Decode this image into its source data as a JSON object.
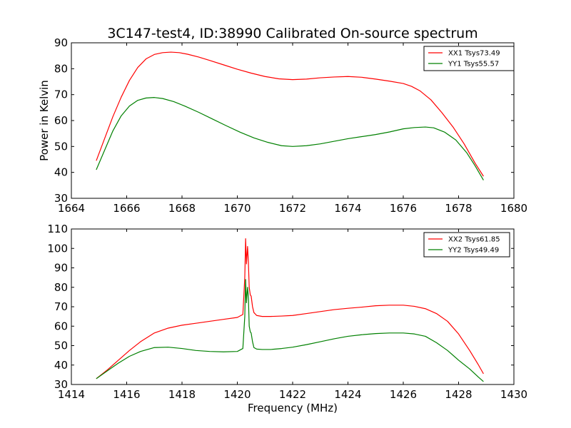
{
  "figure_title": "3C147-test4, ID:38990 Calibrated On-source spectrum",
  "chart_data": [
    {
      "type": "line",
      "title": "3C147-test4, ID:38990 Calibrated On-source spectrum",
      "xlabel": "",
      "ylabel": "Power in Kelvin",
      "xlim": [
        1664,
        1680
      ],
      "ylim": [
        30,
        90
      ],
      "xticks": [
        1664,
        1666,
        1668,
        1670,
        1672,
        1674,
        1676,
        1678,
        1680
      ],
      "yticks": [
        30,
        40,
        50,
        60,
        70,
        80,
        90
      ],
      "grid": false,
      "legend_position": "top-right",
      "series": [
        {
          "name": "XX1 Tsys73.49",
          "color": "#ff0000",
          "x": [
            1664.9,
            1665.2,
            1665.5,
            1665.8,
            1666.1,
            1666.4,
            1666.7,
            1667.0,
            1667.3,
            1667.6,
            1667.9,
            1668.2,
            1668.6,
            1669.0,
            1669.5,
            1670.0,
            1670.5,
            1671.0,
            1671.5,
            1672.0,
            1672.5,
            1673.0,
            1673.5,
            1674.0,
            1674.5,
            1675.0,
            1675.5,
            1676.0,
            1676.3,
            1676.6,
            1677.0,
            1677.4,
            1677.8,
            1678.2,
            1678.6,
            1678.9
          ],
          "y": [
            44.5,
            53.0,
            61.5,
            69.0,
            75.5,
            80.5,
            83.8,
            85.5,
            86.2,
            86.4,
            86.2,
            85.6,
            84.5,
            83.2,
            81.5,
            79.8,
            78.3,
            77.0,
            76.1,
            75.8,
            76.0,
            76.5,
            76.8,
            77.0,
            76.7,
            76.0,
            75.2,
            74.3,
            73.2,
            71.5,
            68.0,
            63.0,
            57.5,
            51.0,
            43.5,
            38.5
          ]
        },
        {
          "name": "YY1 Tsys55.57",
          "color": "#008000",
          "x": [
            1664.9,
            1665.2,
            1665.5,
            1665.8,
            1666.1,
            1666.4,
            1666.7,
            1667.0,
            1667.3,
            1667.7,
            1668.1,
            1668.6,
            1669.1,
            1669.6,
            1670.1,
            1670.6,
            1671.1,
            1671.6,
            1672.0,
            1672.5,
            1673.0,
            1673.5,
            1674.0,
            1674.5,
            1675.0,
            1675.5,
            1676.0,
            1676.4,
            1676.8,
            1677.1,
            1677.5,
            1677.9,
            1678.3,
            1678.6,
            1678.9
          ],
          "y": [
            41.0,
            48.5,
            56.0,
            61.8,
            65.6,
            67.8,
            68.7,
            68.9,
            68.5,
            67.3,
            65.6,
            63.2,
            60.6,
            58.0,
            55.5,
            53.3,
            51.6,
            50.3,
            50.0,
            50.3,
            51.0,
            52.0,
            53.0,
            53.8,
            54.6,
            55.6,
            56.8,
            57.3,
            57.5,
            57.2,
            55.5,
            52.5,
            47.5,
            42.5,
            37.0
          ]
        }
      ]
    },
    {
      "type": "line",
      "title": "",
      "xlabel": "Frequency (MHz)",
      "ylabel": "",
      "xlim": [
        1414,
        1430
      ],
      "ylim": [
        30,
        110
      ],
      "xticks": [
        1414,
        1416,
        1418,
        1420,
        1422,
        1424,
        1426,
        1428,
        1430
      ],
      "yticks": [
        30,
        40,
        50,
        60,
        70,
        80,
        90,
        100,
        110
      ],
      "grid": false,
      "legend_position": "top-right",
      "series": [
        {
          "name": "XX2 Tsys61.85",
          "color": "#ff0000",
          "x": [
            1414.9,
            1415.3,
            1415.7,
            1416.1,
            1416.5,
            1417.0,
            1417.5,
            1418.0,
            1418.5,
            1419.0,
            1419.5,
            1420.0,
            1420.2,
            1420.27,
            1420.3,
            1420.33,
            1420.37,
            1420.4,
            1420.43,
            1420.47,
            1420.5,
            1420.55,
            1420.6,
            1420.7,
            1420.9,
            1421.2,
            1421.6,
            1422.0,
            1422.5,
            1423.0,
            1423.5,
            1424.0,
            1424.5,
            1425.0,
            1425.5,
            1426.0,
            1426.4,
            1426.8,
            1427.2,
            1427.6,
            1428.0,
            1428.4,
            1428.7,
            1428.9
          ],
          "y": [
            33.0,
            37.5,
            42.5,
            47.5,
            52.0,
            56.5,
            59.0,
            60.5,
            61.5,
            62.5,
            63.5,
            64.5,
            66.0,
            85.0,
            105.0,
            92.0,
            101.0,
            93.0,
            80.0,
            76.0,
            75.5,
            70.0,
            67.0,
            65.5,
            65.0,
            65.0,
            65.2,
            65.5,
            66.5,
            67.5,
            68.5,
            69.2,
            69.8,
            70.5,
            70.8,
            70.8,
            70.2,
            69.0,
            66.5,
            62.5,
            56.0,
            47.5,
            40.5,
            35.5
          ]
        },
        {
          "name": "YY2 Tsys49.49",
          "color": "#008000",
          "x": [
            1414.9,
            1415.3,
            1415.7,
            1416.1,
            1416.5,
            1417.0,
            1417.5,
            1418.0,
            1418.5,
            1419.0,
            1419.5,
            1420.0,
            1420.2,
            1420.27,
            1420.3,
            1420.33,
            1420.37,
            1420.4,
            1420.43,
            1420.47,
            1420.5,
            1420.55,
            1420.6,
            1420.7,
            1420.9,
            1421.2,
            1421.6,
            1422.0,
            1422.5,
            1423.0,
            1423.5,
            1424.0,
            1424.5,
            1425.0,
            1425.5,
            1426.0,
            1426.4,
            1426.8,
            1427.2,
            1427.6,
            1428.0,
            1428.4,
            1428.7,
            1428.9
          ],
          "y": [
            33.0,
            37.0,
            41.0,
            44.5,
            47.0,
            49.0,
            49.2,
            48.5,
            47.5,
            47.0,
            46.8,
            47.0,
            48.5,
            65.0,
            84.0,
            72.0,
            80.0,
            75.0,
            60.0,
            57.0,
            56.5,
            52.0,
            49.0,
            48.2,
            48.0,
            48.0,
            48.5,
            49.2,
            50.5,
            52.0,
            53.5,
            54.8,
            55.6,
            56.2,
            56.5,
            56.5,
            56.0,
            54.8,
            51.5,
            47.5,
            42.5,
            38.0,
            34.0,
            31.5
          ]
        }
      ]
    }
  ]
}
